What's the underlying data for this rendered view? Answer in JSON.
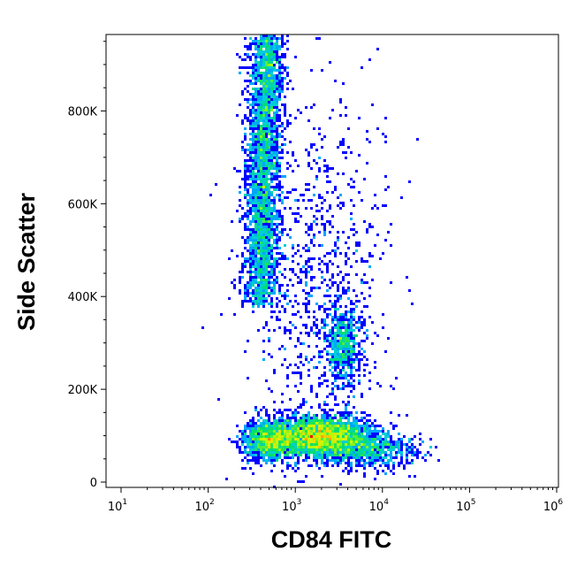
{
  "chart_data": {
    "type": "scatter",
    "subtype": "density-dot-plot",
    "title": "",
    "xlabel": "CD84 FITC",
    "ylabel": "Side Scatter",
    "x_scale": "log",
    "xlim": [
      7,
      1100000
    ],
    "ylim": [
      -10000,
      970000
    ],
    "x_ticks": [
      {
        "value": 10,
        "base": "10",
        "exp": "1"
      },
      {
        "value": 100,
        "base": "10",
        "exp": "2"
      },
      {
        "value": 1000,
        "base": "10",
        "exp": "3"
      },
      {
        "value": 10000,
        "base": "10",
        "exp": "4"
      },
      {
        "value": 100000,
        "base": "10",
        "exp": "5"
      },
      {
        "value": 1000000,
        "base": "10",
        "exp": "6"
      }
    ],
    "y_ticks": [
      {
        "value": 0,
        "label": "0"
      },
      {
        "value": 200000,
        "label": "200K"
      },
      {
        "value": 400000,
        "label": "400K"
      },
      {
        "value": 600000,
        "label": "600K"
      },
      {
        "value": 800000,
        "label": "800K"
      }
    ],
    "grid": false,
    "legend": "none",
    "color_scale": [
      "#0000ff",
      "#00c8ff",
      "#00e060",
      "#c8ff00",
      "#ffd000",
      "#ff0000"
    ],
    "populations": [
      {
        "log10_x_center": 2.78,
        "y_center": 620000,
        "log10_x_sd": 0.1,
        "y_sd": 150000,
        "y_range": [
          380000,
          970000
        ],
        "relative_count": 0.33
      },
      {
        "log10_x_center": 3.3,
        "y_center": 100000,
        "log10_x_sd": 0.28,
        "y_sd": 22000,
        "relative_count": 0.3
      },
      {
        "log10_x_center": 2.7,
        "y_center": 90000,
        "log10_x_sd": 0.15,
        "y_sd": 22000,
        "relative_count": 0.12
      },
      {
        "log10_x_center": 3.85,
        "y_center": 70000,
        "log10_x_sd": 0.3,
        "y_sd": 20000,
        "relative_count": 0.08
      },
      {
        "log10_x_center": 3.55,
        "y_center": 300000,
        "log10_x_sd": 0.12,
        "y_sd": 45000,
        "relative_count": 0.07
      },
      {
        "log10_x_center": 3.2,
        "y_center": 450000,
        "log10_x_sd": 0.4,
        "y_sd": 200000,
        "relative_count": 0.1
      }
    ]
  }
}
